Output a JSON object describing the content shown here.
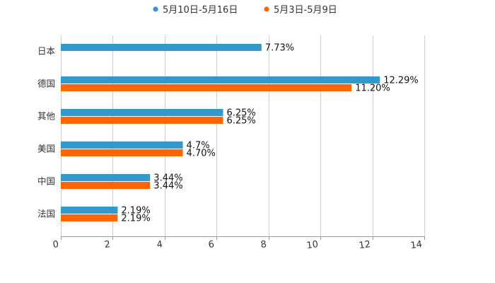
{
  "chart_data": {
    "type": "bar",
    "orientation": "horizontal",
    "categories": [
      "日本",
      "德国",
      "其他",
      "美国",
      "中国",
      "法国"
    ],
    "series": [
      {
        "name": "5月10日-5月16日",
        "color": "#3399cc",
        "values": [
          7.73,
          12.29,
          6.25,
          4.7,
          3.44,
          2.19
        ],
        "labels": [
          "7.73%",
          "12.29%",
          "6.25%",
          "4.7%",
          "3.44%",
          "2.19%"
        ]
      },
      {
        "name": "5月3日-5月9日",
        "color": "#ff6600",
        "values": [
          null,
          11.2,
          6.25,
          4.7,
          3.44,
          2.19
        ],
        "labels": [
          null,
          "11.20%",
          "6.25%",
          "4.70%",
          "3.44%",
          "2.19%"
        ]
      }
    ],
    "xlim": [
      0,
      14
    ],
    "xticks": [
      "0",
      "2",
      "4",
      "6",
      "8",
      "10",
      "12",
      "14"
    ],
    "xtick_values": [
      0,
      2,
      4,
      6,
      8,
      10,
      12,
      14
    ],
    "grid": true,
    "legend_position": "top-center",
    "title": "",
    "xlabel": "",
    "ylabel": ""
  }
}
